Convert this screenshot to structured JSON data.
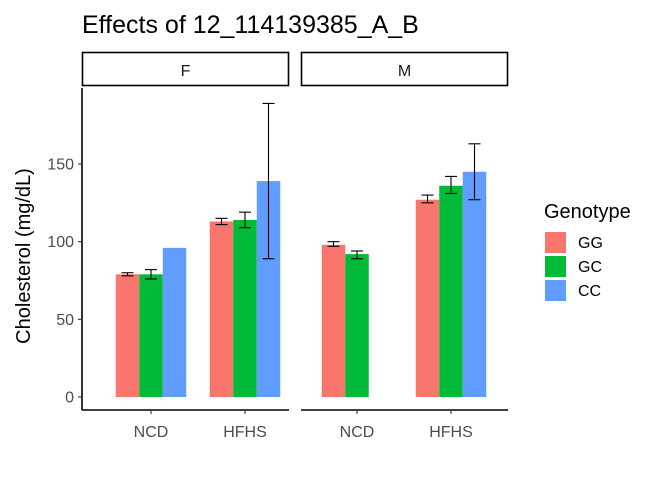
{
  "chart_data": {
    "type": "bar",
    "title": "Effects of  12_114139385_A_B",
    "xlabel": "",
    "ylabel": "Cholesterol (mg/dL)",
    "ylim": [
      0,
      190
    ],
    "yticks": [
      0,
      50,
      100,
      150
    ],
    "categories": [
      "NCD",
      "HFHS"
    ],
    "legend": {
      "title": "Genotype",
      "position": "right",
      "entries": [
        {
          "name": "GG",
          "color": "#F8766D"
        },
        {
          "name": "GC",
          "color": "#00BA38"
        },
        {
          "name": "CC",
          "color": "#619CFF"
        }
      ]
    },
    "panels": [
      {
        "label": "F",
        "series": [
          {
            "name": "GG",
            "values": [
              79,
              113
            ],
            "error": [
              [
                78,
                80
              ],
              [
                111,
                115
              ]
            ]
          },
          {
            "name": "GC",
            "values": [
              79,
              114
            ],
            "error": [
              [
                76,
                82
              ],
              [
                109,
                119
              ]
            ]
          },
          {
            "name": "CC",
            "values": [
              96,
              139
            ],
            "error": [
              null,
              [
                89,
                189
              ]
            ]
          }
        ]
      },
      {
        "label": "M",
        "series": [
          {
            "name": "GG",
            "values": [
              98,
              127
            ],
            "error": [
              [
                97,
                100
              ],
              [
                125,
                130
              ]
            ]
          },
          {
            "name": "GC",
            "values": [
              92,
              136
            ],
            "error": [
              [
                89,
                94
              ],
              [
                131,
                142
              ]
            ]
          },
          {
            "name": "CC",
            "values": [
              null,
              145
            ],
            "error": [
              null,
              [
                127,
                163
              ]
            ]
          }
        ]
      }
    ],
    "grid": false
  }
}
